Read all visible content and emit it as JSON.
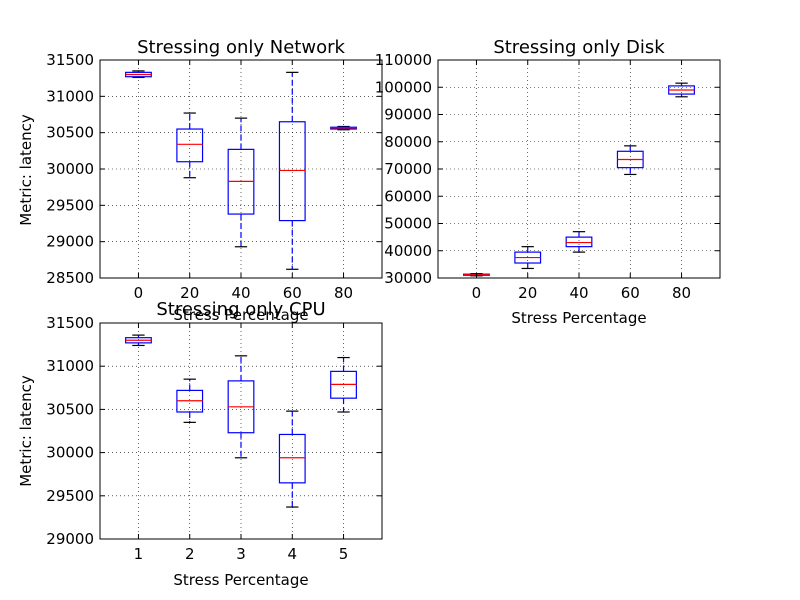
{
  "chart_data": [
    {
      "type": "boxplot",
      "title": "Stressing only Network",
      "xlabel": "Stress Percentage",
      "ylabel": "Metric: latency",
      "categories": [
        "0",
        "20",
        "40",
        "60",
        "80"
      ],
      "yticks": [
        28500,
        29000,
        29500,
        30000,
        30500,
        31000,
        31500
      ],
      "ylim": [
        28500,
        31500
      ],
      "grid": true,
      "boxes": [
        {
          "whisker_low": 31260,
          "q1": 31270,
          "median": 31300,
          "q3": 31330,
          "whisker_high": 31350
        },
        {
          "whisker_low": 29880,
          "q1": 30100,
          "median": 30340,
          "q3": 30550,
          "whisker_high": 30770
        },
        {
          "whisker_low": 28930,
          "q1": 29380,
          "median": 29830,
          "q3": 30270,
          "whisker_high": 30700
        },
        {
          "whisker_low": 28620,
          "q1": 29290,
          "median": 29980,
          "q3": 30650,
          "whisker_high": 31330
        },
        {
          "whisker_low": 30540,
          "q1": 30550,
          "median": 30565,
          "q3": 30575,
          "whisker_high": 30585
        }
      ],
      "colors": {
        "box": "#0000ff",
        "median": "#ff0000",
        "cap": "#000000"
      }
    },
    {
      "type": "boxplot",
      "title": "Stressing only Disk",
      "xlabel": "Stress Percentage",
      "ylabel": "",
      "categories": [
        "0",
        "20",
        "40",
        "60",
        "80"
      ],
      "yticks": [
        30000,
        40000,
        50000,
        60000,
        70000,
        80000,
        90000,
        100000,
        110000
      ],
      "ylim": [
        30000,
        110000
      ],
      "grid": true,
      "boxes": [
        {
          "whisker_low": 30800,
          "q1": 31000,
          "median": 31200,
          "q3": 31400,
          "whisker_high": 31600
        },
        {
          "whisker_low": 33500,
          "q1": 35500,
          "median": 37500,
          "q3": 39500,
          "whisker_high": 41500
        },
        {
          "whisker_low": 39500,
          "q1": 41500,
          "median": 43000,
          "q3": 45000,
          "whisker_high": 47000
        },
        {
          "whisker_low": 68000,
          "q1": 70500,
          "median": 73500,
          "q3": 76500,
          "whisker_high": 78500
        },
        {
          "whisker_low": 96500,
          "q1": 97500,
          "median": 99000,
          "q3": 100500,
          "whisker_high": 101500
        }
      ],
      "colors": {
        "box": "#0000ff",
        "median": "#ff0000",
        "cap": "#000000"
      }
    },
    {
      "type": "boxplot",
      "title": "Stressing only CPU",
      "xlabel": "Stress Percentage",
      "ylabel": "Metric: latency",
      "categories": [
        "1",
        "2",
        "3",
        "4",
        "5"
      ],
      "yticks": [
        29000,
        29500,
        30000,
        30500,
        31000,
        31500
      ],
      "ylim": [
        29000,
        31500
      ],
      "grid": true,
      "boxes": [
        {
          "whisker_low": 31240,
          "q1": 31270,
          "median": 31300,
          "q3": 31330,
          "whisker_high": 31360
        },
        {
          "whisker_low": 30350,
          "q1": 30470,
          "median": 30600,
          "q3": 30720,
          "whisker_high": 30850
        },
        {
          "whisker_low": 29940,
          "q1": 30230,
          "median": 30530,
          "q3": 30830,
          "whisker_high": 31120
        },
        {
          "whisker_low": 29370,
          "q1": 29650,
          "median": 29940,
          "q3": 30210,
          "whisker_high": 30480
        },
        {
          "whisker_low": 30470,
          "q1": 30630,
          "median": 30790,
          "q3": 30940,
          "whisker_high": 31100
        }
      ],
      "colors": {
        "box": "#0000ff",
        "median": "#ff0000",
        "cap": "#000000"
      }
    }
  ]
}
